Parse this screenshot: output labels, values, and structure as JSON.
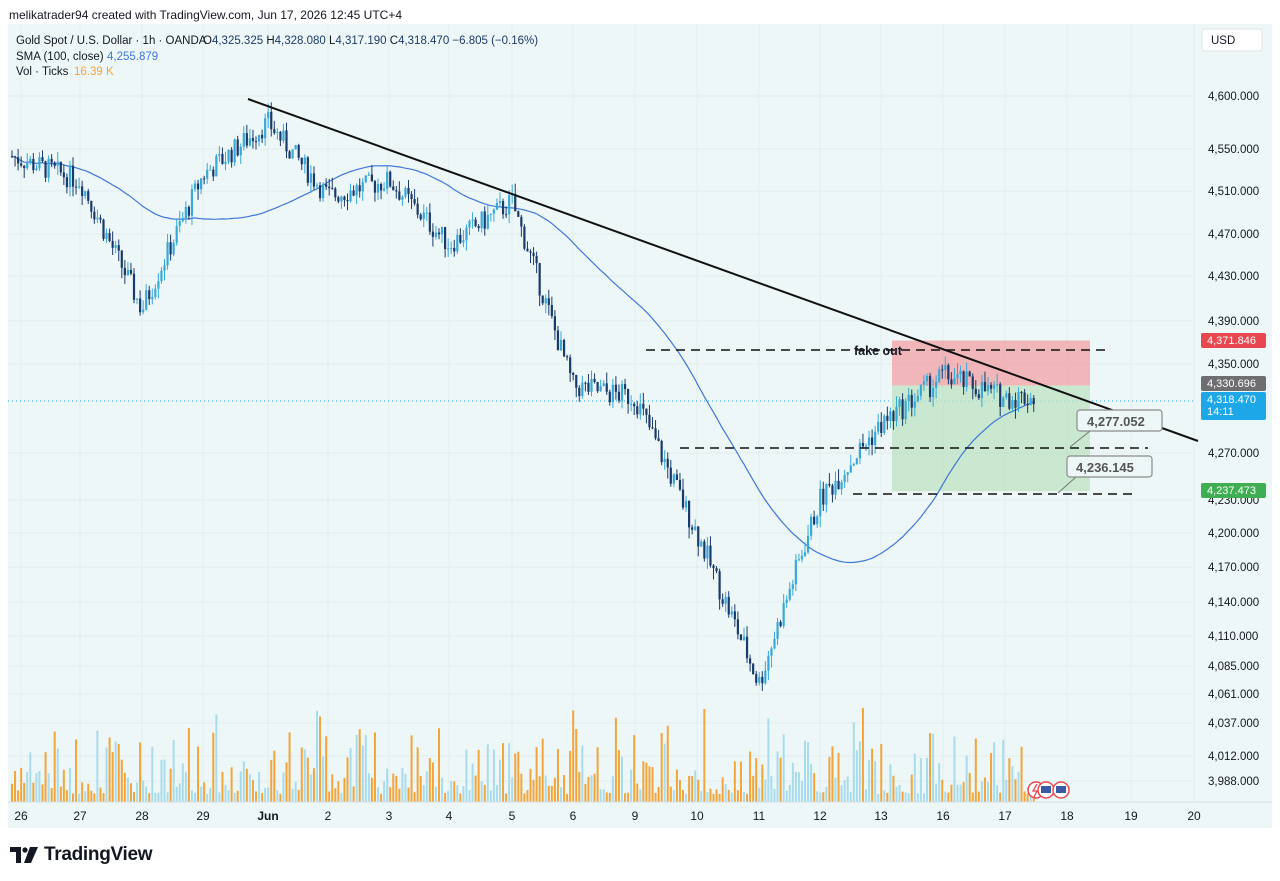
{
  "header": {
    "attribution": "melikatrader94 created with TradingView.com, Jun 17, 2026 12:45 UTC+4"
  },
  "legend": {
    "symbol": "Gold Spot / U.S. Dollar · 1h · OANDA",
    "ohlc": [
      {
        "k": "O",
        "v": "4,325.325"
      },
      {
        "k": "H",
        "v": "4,328.080"
      },
      {
        "k": "L",
        "v": "4,317.190"
      },
      {
        "k": "C",
        "v": "4,318.470"
      }
    ],
    "change": "−6.805 (−0.16%)",
    "sma_label": "SMA (100, close)",
    "sma_value": "4,255.879",
    "vol_label": "Vol · Ticks",
    "vol_value": "16.39 K"
  },
  "currency_button": "USD",
  "colors": {
    "up": "#38a9d6",
    "down": "#1a3a6b",
    "sma": "#3f77d8",
    "vol_up": "#a8dcec",
    "vol_down": "#f2a53a",
    "bg": "#eef7f7",
    "stop": "#f0a0a4",
    "target": "#bfe4c4",
    "label_stop": "#e8474f",
    "label_target": "#3fae52",
    "label_entry": "#6d6d72",
    "label_last": "#1ea7e8"
  },
  "footer": {
    "brand": "TradingView",
    "logo_icon": "tradingview-logo-icon"
  },
  "annotations": {
    "fake_out": "fake out",
    "callout_1": "4,277.052",
    "callout_2": "4,236.145"
  },
  "price_labels": {
    "stop": "4,371.846",
    "entry": "4,330.696",
    "last": "4,318.470",
    "countdown": "14:11",
    "target": "4,237.473"
  },
  "chart_data": {
    "type": "candlestick",
    "symbol": "Gold Spot / U.S. Dollar",
    "timeframe": "1h",
    "y_ticks": [
      "4,600.000",
      "4,550.000",
      "4,510.000",
      "4,470.000",
      "4,430.000",
      "4,390.000",
      "4,350.000",
      "4,270.000",
      "4,230.000",
      "4,200.000",
      "4,170.000",
      "4,140.000",
      "4,110.000",
      "4,085.000",
      "4,061.000",
      "4,037.000",
      "4,012.000",
      "3,988.000"
    ],
    "x_ticks": [
      "26",
      "27",
      "28",
      "29",
      "Jun",
      "2",
      "3",
      "4",
      "5",
      "6",
      "9",
      "10",
      "11",
      "12",
      "13",
      "16",
      "17",
      "18",
      "19",
      "20"
    ],
    "approx_path": [
      [
        "26",
        4540
      ],
      [
        "27",
        4520
      ],
      [
        "28",
        4400
      ],
      [
        "29",
        4525
      ],
      [
        "Jun",
        4575
      ],
      [
        "2",
        4505
      ],
      [
        "3",
        4520
      ],
      [
        "4",
        4460
      ],
      [
        "5",
        4500
      ],
      [
        "6",
        4330
      ],
      [
        "9",
        4320
      ],
      [
        "10",
        4200
      ],
      [
        "11",
        4070
      ],
      [
        "12",
        4230
      ],
      [
        "13",
        4295
      ],
      [
        "16",
        4340
      ],
      [
        "17",
        4320
      ]
    ],
    "sma_100_last": 4255.879,
    "last_close": 4318.47,
    "trendline": [
      [
        "29",
        4598
      ],
      [
        "20",
        4285
      ]
    ],
    "levels": {
      "fake_out": 4372,
      "support_1": 4277.052,
      "support_2": 4236.145
    },
    "position": {
      "entry": 4330.696,
      "stop": 4371.846,
      "target": 4237.473
    }
  }
}
